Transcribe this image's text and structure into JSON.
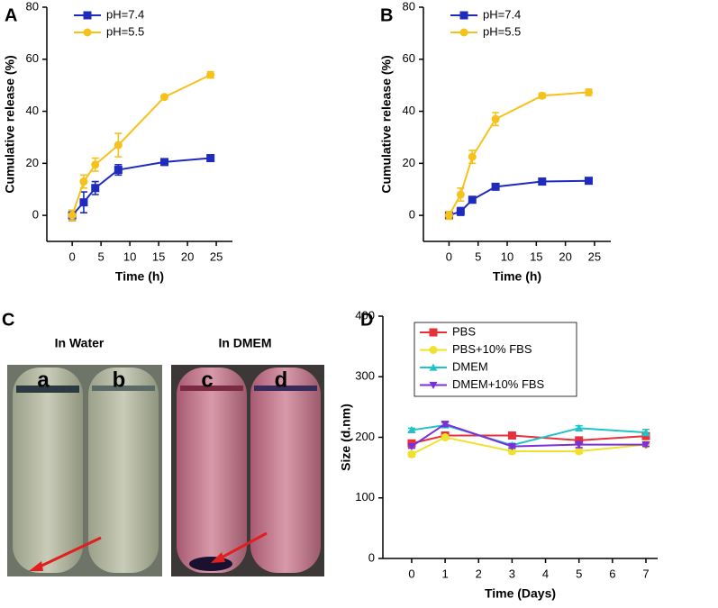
{
  "chart_data": [
    {
      "type": "line",
      "panel_label": "A",
      "x_label": "Time (h)",
      "y_label": "Cumulative release (%)",
      "x": [
        0,
        2,
        4,
        8,
        16,
        24
      ],
      "xlim": [
        -4.4,
        27.8
      ],
      "xticks": [
        0,
        5,
        10,
        15,
        20,
        25
      ],
      "ylim": [
        -10,
        80
      ],
      "yticks": [
        0,
        20,
        40,
        60,
        80
      ],
      "legend": "upper left",
      "series": [
        {
          "name": "pH=7.4",
          "color": "#1f2bbd",
          "marker": "square",
          "values": [
            0,
            5,
            10.5,
            17.5,
            20.5,
            22
          ],
          "errors": [
            2,
            4,
            2.5,
            2,
            0.6,
            1.2
          ]
        },
        {
          "name": "pH=5.5",
          "color": "#f5c21b",
          "marker": "circle",
          "values": [
            0,
            13,
            19.5,
            27,
            45.5,
            54
          ],
          "errors": [
            2,
            2.5,
            2.5,
            4.5,
            0.6,
            1.2
          ]
        }
      ]
    },
    {
      "type": "line",
      "panel_label": "B",
      "x_label": "Time (h)",
      "y_label": "Cumulative release (%)",
      "x": [
        0,
        2,
        4,
        8,
        16,
        24
      ],
      "xlim": [
        -4.4,
        27.8
      ],
      "xticks": [
        0,
        5,
        10,
        15,
        20,
        25
      ],
      "ylim": [
        -10,
        80
      ],
      "yticks": [
        0,
        20,
        40,
        60,
        80
      ],
      "legend": "upper left",
      "series": [
        {
          "name": "pH=7.4",
          "color": "#1f2bbd",
          "marker": "square",
          "values": [
            0,
            1.5,
            6,
            11,
            13,
            13.3
          ],
          "errors": [
            1,
            1.5,
            1,
            1,
            1,
            0.5
          ]
        },
        {
          "name": "pH=5.5",
          "color": "#f5c21b",
          "marker": "circle",
          "values": [
            0,
            8,
            22.5,
            37,
            46,
            47.3
          ],
          "errors": [
            1.5,
            2.5,
            2.5,
            2.5,
            1,
            1.2
          ]
        }
      ]
    },
    {
      "type": "line",
      "panel_label": "D",
      "x_label": "Time (Days)",
      "y_label": "Size (d.nm)",
      "x": [
        0,
        1,
        3,
        5,
        7
      ],
      "xlim": [
        -0.86,
        7.35
      ],
      "xticks": [
        0,
        1,
        2,
        3,
        4,
        5,
        6,
        7
      ],
      "ylim": [
        0,
        400
      ],
      "yticks": [
        0,
        100,
        200,
        300,
        400
      ],
      "legend": "upper left",
      "legend_box": true,
      "series": [
        {
          "name": "PBS",
          "color": "#e8303a",
          "marker": "square",
          "values": [
            190,
            203,
            203,
            195,
            202
          ],
          "errors": [
            4,
            3,
            5,
            3,
            3
          ]
        },
        {
          "name": "PBS+10% FBS",
          "color": "#f0e22c",
          "marker": "circle",
          "values": [
            172,
            200,
            177,
            177,
            188
          ],
          "errors": [
            4,
            3,
            4,
            4,
            3
          ]
        },
        {
          "name": "DMEM",
          "color": "#1fc3c8",
          "marker": "triangle",
          "values": [
            212,
            220,
            187,
            215,
            208
          ],
          "errors": [
            3,
            4,
            3,
            4,
            5
          ]
        },
        {
          "name": "DMEM+10% FBS",
          "color": "#7a2fd8",
          "marker": "triangle-down",
          "values": [
            185,
            222,
            185,
            188,
            188
          ],
          "errors": [
            3,
            4,
            3,
            5,
            3
          ]
        }
      ]
    }
  ],
  "photo_panel": {
    "label": "C",
    "groups": [
      {
        "title": "In Water",
        "tubes": [
          "a",
          "b"
        ]
      },
      {
        "title": "In DMEM",
        "tubes": [
          "c",
          "d"
        ]
      }
    ]
  }
}
